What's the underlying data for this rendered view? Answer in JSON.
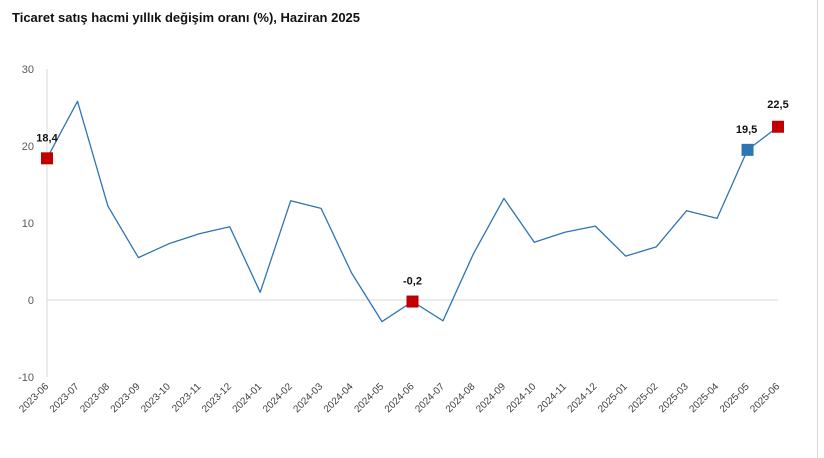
{
  "chart_data": {
    "type": "line",
    "title": "Ticaret satış hacmi yıllık değişim oranı (%), Haziran 2025",
    "xlabel": "",
    "ylabel": "",
    "ylim": [
      -10,
      30
    ],
    "yticks": [
      -10,
      0,
      10,
      20,
      30
    ],
    "grid": false,
    "categories": [
      "2023-06",
      "2023-07",
      "2023-08",
      "2023-09",
      "2023-10",
      "2023-11",
      "2023-12",
      "2024-01",
      "2024-02",
      "2024-03",
      "2024-04",
      "2024-05",
      "2024-06",
      "2024-07",
      "2024-08",
      "2024-09",
      "2024-10",
      "2024-11",
      "2024-12",
      "2025-01",
      "2025-02",
      "2025-03",
      "2025-04",
      "2025-05",
      "2025-06"
    ],
    "series": [
      {
        "values": [
          18.4,
          25.8,
          12.2,
          5.5,
          7.3,
          8.6,
          9.5,
          1.0,
          12.9,
          11.9,
          3.5,
          -2.8,
          -0.2,
          -2.7,
          6.0,
          13.2,
          7.5,
          8.8,
          9.6,
          5.7,
          6.9,
          11.6,
          10.6,
          19.5,
          22.5
        ],
        "color": "#2e75b6"
      }
    ],
    "highlighted_points": [
      {
        "index": 0,
        "label": "18,4",
        "color": "#c00000"
      },
      {
        "index": 12,
        "label": "-0,2",
        "color": "#c00000"
      },
      {
        "index": 23,
        "label": "19,5",
        "color": "#2e75b6"
      },
      {
        "index": 24,
        "label": "22,5",
        "color": "#c00000"
      }
    ]
  }
}
